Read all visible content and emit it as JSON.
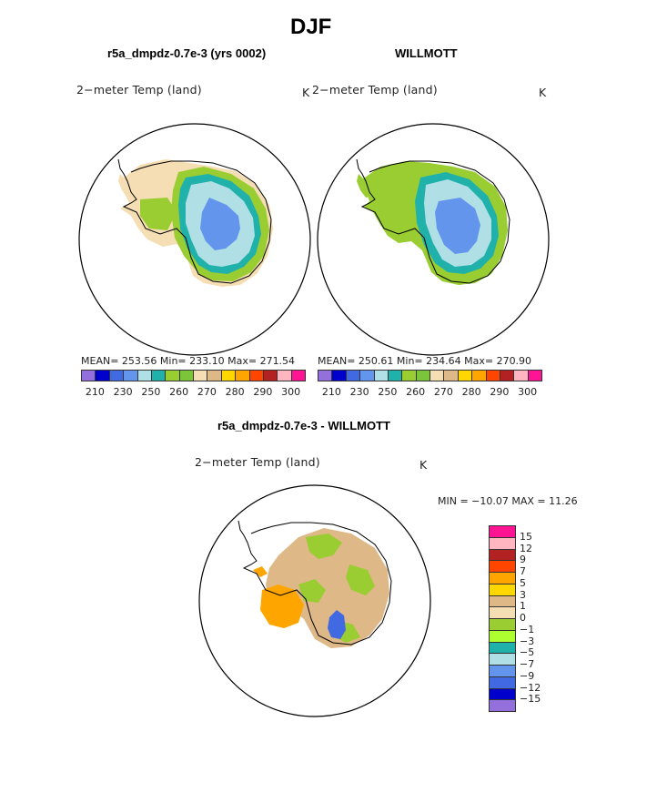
{
  "figure": {
    "title": "DJF",
    "panels": [
      {
        "subtitle": "r5a_dmpdz-0.7e-3 (yrs 0002)",
        "variable": "2−meter Temp (land)",
        "units": "K",
        "stats": "MEAN= 253.56   Min= 233.10   Max= 271.54"
      },
      {
        "subtitle": "WILLMOTT",
        "variable": "2−meter Temp (land)",
        "units": "K",
        "stats": "MEAN= 250.61   Min= 234.64   Max= 270.90"
      },
      {
        "subtitle": "r5a_dmpdz-0.7e-3 - WILLMOTT",
        "variable": "2−meter Temp (land)",
        "units": "K",
        "stats": "MIN = −10.07 MAX =   11.26"
      }
    ]
  },
  "abs_colorbar": {
    "colors": [
      "#9370db",
      "#0000cd",
      "#4169e1",
      "#6495ed",
      "#b0e0e6",
      "#20b2aa",
      "#9acd32",
      "#7cc43a",
      "#f5deb3",
      "#deb887",
      "#ffd700",
      "#ffa500",
      "#ff4500",
      "#b22222",
      "#ffb6c1",
      "#ff1493"
    ],
    "ticks": [
      "210",
      "230",
      "250",
      "260",
      "270",
      "280",
      "290",
      "300"
    ]
  },
  "diff_colorbar": {
    "colors": [
      "#ff1493",
      "#ffb6c1",
      "#b22222",
      "#ff4500",
      "#ffa500",
      "#ffd700",
      "#deb887",
      "#f5deb3",
      "#9acd32",
      "#adff2f",
      "#20b2aa",
      "#b0e0e6",
      "#6495ed",
      "#4169e1",
      "#0000cd",
      "#9370db"
    ],
    "ticks": [
      "15",
      "12",
      "9",
      "7",
      "5",
      "3",
      "1",
      "0",
      "−1",
      "−3",
      "−5",
      "−7",
      "−9",
      "−12",
      "−15"
    ]
  },
  "map_colors": {
    "outer": "#f5deb3",
    "ring_green": "#9acd32",
    "ring_teal": "#20b2aa",
    "plateau": "#b0e0e6",
    "core": "#6495ed",
    "diff_neutral": "#deb887",
    "diff_green": "#9acd32",
    "diff_warm": "#ffa500",
    "diff_cold": "#4169e1"
  }
}
